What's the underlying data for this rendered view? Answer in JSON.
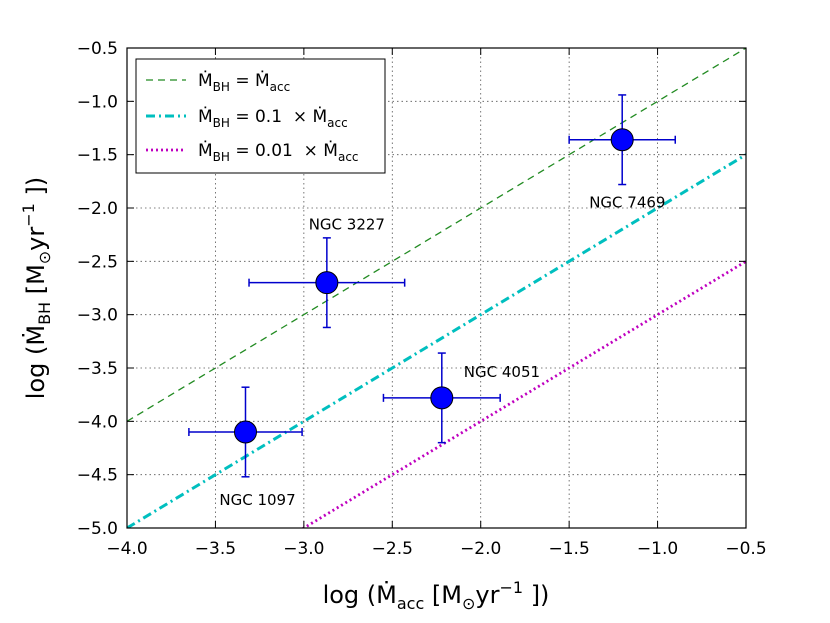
{
  "chart_data": {
    "type": "scatter",
    "xlim": [
      -4.0,
      -0.5
    ],
    "ylim": [
      -5.0,
      -0.5
    ],
    "xticks": [
      -4.0,
      -3.5,
      -3.0,
      -2.5,
      -2.0,
      -1.5,
      -1.0,
      -0.5
    ],
    "yticks": [
      -5.0,
      -4.5,
      -4.0,
      -3.5,
      -3.0,
      -2.5,
      -2.0,
      -1.5,
      -1.0,
      -0.5
    ],
    "xtick_labels": [
      "−4.0",
      "−3.5",
      "−3.0",
      "−2.5",
      "−2.0",
      "−1.5",
      "−1.0",
      "−0.5"
    ],
    "ytick_labels": [
      "−5.0",
      "−4.5",
      "−4.0",
      "−3.5",
      "−3.0",
      "−2.5",
      "−2.0",
      "−1.5",
      "−1.0",
      "−0.5"
    ],
    "xlabel": "log (Ṁacc [M⊙yr−1 ])",
    "ylabel": "log (ṀBH [M⊙yr−1 ])",
    "grid": true,
    "legend_position": "top-left",
    "points": [
      {
        "name": "NGC 1097",
        "x": -3.33,
        "y": -4.1,
        "xerr_low": 0.32,
        "xerr_high": 0.32,
        "yerr_low": 0.42,
        "yerr_high": 0.42
      },
      {
        "name": "NGC 3227",
        "x": -2.87,
        "y": -2.7,
        "xerr_low": 0.44,
        "xerr_high": 0.44,
        "yerr_low": 0.42,
        "yerr_high": 0.42
      },
      {
        "name": "NGC 4051",
        "x": -2.22,
        "y": -3.78,
        "xerr_low": 0.33,
        "xerr_high": 0.33,
        "yerr_low": 0.42,
        "yerr_high": 0.42
      },
      {
        "name": "NGC 7469",
        "x": -1.2,
        "y": -1.36,
        "xerr_low": 0.3,
        "xerr_high": 0.3,
        "yerr_low": 0.42,
        "yerr_high": 0.42
      }
    ],
    "lines": [
      {
        "name": "ṀBH = Ṁacc",
        "offset": 0.0,
        "color": "#228b22",
        "style": "dashed"
      },
      {
        "name": "ṀBH = 0.1 × Ṁacc",
        "offset": -1.0,
        "color": "#00bfbf",
        "style": "dashdot"
      },
      {
        "name": "ṀBH = 0.01 × Ṁacc",
        "offset": -2.0,
        "color": "#bf00bf",
        "style": "dotted"
      }
    ],
    "colors": {
      "marker": "#0000ff",
      "errorbar": "#0000cc",
      "grid": "#555555"
    }
  },
  "axis_text": {
    "x": {
      "log": "log (",
      "M": "Ṁ",
      "acc": "acc",
      "unit_open": " [M",
      "sun": "⊙",
      "yr": "yr",
      "exp": "−1",
      "close": " ])"
    },
    "y": {
      "log": "log (",
      "M": "Ṁ",
      "bh": "BH",
      "unit_open": " [M",
      "sun": "⊙",
      "yr": "yr",
      "exp": "−1",
      "close": " ])"
    }
  },
  "legend": {
    "entries": [
      {
        "m1": "Ṁ",
        "s1": "BH",
        "mid": " = ",
        "m2": "Ṁ",
        "s2": "acc"
      },
      {
        "m1": "Ṁ",
        "s1": "BH",
        "mid": " = 0.1  × ",
        "m2": "Ṁ",
        "s2": "acc"
      },
      {
        "m1": "Ṁ",
        "s1": "BH",
        "mid": " = 0.01  × ",
        "m2": "Ṁ",
        "s2": "acc"
      }
    ]
  }
}
